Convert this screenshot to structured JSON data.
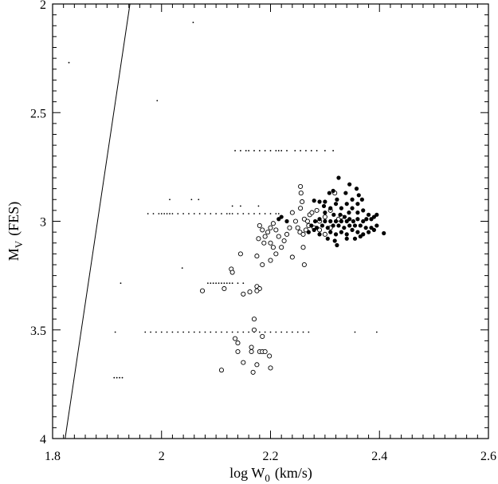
{
  "chart_data": {
    "type": "scatter",
    "xlabel": "log W",
    "xlabel_sub": "0",
    "xlabel_unit": "(km/s)",
    "ylabel": "M",
    "ylabel_sub": "V",
    "ylabel_unit": "(FES)",
    "xlim": [
      1.8,
      2.6
    ],
    "ylim": [
      4,
      2
    ],
    "y_inverted": true,
    "grid": false,
    "x_ticks": [
      1.8,
      2.0,
      2.2,
      2.4,
      2.6
    ],
    "x_tick_labels": [
      "1.8",
      "2",
      "2.2",
      "2.4",
      "2.6"
    ],
    "y_ticks": [
      2.0,
      2.5,
      3.0,
      3.5,
      4.0
    ],
    "y_tick_labels": [
      "2",
      "2.5",
      "3",
      "3.5",
      "4"
    ],
    "line": {
      "x": [
        1.823,
        1.942
      ],
      "y": [
        4.0,
        2.0
      ]
    },
    "dot_rows": [
      {
        "y": 2.675,
        "x": [
          2.135,
          2.145,
          2.155,
          2.16,
          2.17,
          2.18,
          2.19,
          2.2,
          2.21,
          2.215,
          2.22,
          2.23,
          2.245,
          2.255,
          2.265,
          2.275,
          2.285,
          2.3,
          2.315
        ]
      },
      {
        "y": 2.965,
        "x": [
          1.975,
          1.985,
          1.995,
          2.0,
          2.005,
          2.01,
          2.015,
          2.02,
          2.03,
          2.04,
          2.05,
          2.06,
          2.07,
          2.08,
          2.09,
          2.1,
          2.11,
          2.12,
          2.125,
          2.13,
          2.14,
          2.15,
          2.16,
          2.17,
          2.18,
          2.19,
          2.2,
          2.21,
          2.215
        ]
      },
      {
        "y": 3.285,
        "x": [
          2.085,
          2.09,
          2.095,
          2.1,
          2.105,
          2.11,
          2.115,
          2.12,
          2.125,
          2.13,
          2.14,
          2.15
        ]
      },
      {
        "y": 3.51,
        "x": [
          1.915,
          1.97,
          1.98,
          1.99,
          2.0,
          2.01,
          2.02,
          2.03,
          2.04,
          2.05,
          2.06,
          2.07,
          2.08,
          2.09,
          2.1,
          2.11,
          2.12,
          2.13,
          2.14,
          2.15,
          2.16,
          2.17,
          2.18,
          2.19,
          2.2,
          2.21,
          2.22,
          2.23,
          2.24,
          2.25,
          2.26,
          2.27,
          2.355,
          2.395
        ]
      },
      {
        "y": 3.72,
        "x": [
          1.913,
          1.918,
          1.923,
          1.928
        ]
      }
    ],
    "scattered_dots": [
      {
        "x": 1.83,
        "y": 2.27
      },
      {
        "x": 2.058,
        "y": 2.085
      },
      {
        "x": 1.992,
        "y": 2.445
      },
      {
        "x": 2.015,
        "y": 2.9
      },
      {
        "x": 2.055,
        "y": 2.9
      },
      {
        "x": 2.068,
        "y": 2.9
      },
      {
        "x": 2.13,
        "y": 2.93
      },
      {
        "x": 2.145,
        "y": 2.93
      },
      {
        "x": 2.178,
        "y": 2.93
      },
      {
        "x": 2.038,
        "y": 3.215
      },
      {
        "x": 1.925,
        "y": 3.285
      }
    ],
    "series": [
      {
        "marker": "open-circle",
        "points": [
          [
            2.255,
            2.84
          ],
          [
            2.256,
            2.87
          ],
          [
            2.258,
            2.91
          ],
          [
            2.255,
            2.94
          ],
          [
            2.262,
            2.99
          ],
          [
            2.268,
            3.0
          ],
          [
            2.272,
            2.97
          ],
          [
            2.276,
            2.96
          ],
          [
            2.285,
            2.95
          ],
          [
            2.29,
            3.0
          ],
          [
            2.3,
            2.98
          ],
          [
            2.31,
            2.95
          ],
          [
            2.318,
            2.87
          ],
          [
            2.325,
            2.99
          ],
          [
            2.33,
            2.98
          ],
          [
            2.24,
            2.96
          ],
          [
            2.246,
            3.0
          ],
          [
            2.25,
            3.03
          ],
          [
            2.254,
            3.05
          ],
          [
            2.26,
            3.06
          ],
          [
            2.265,
            3.04
          ],
          [
            2.27,
            3.02
          ],
          [
            2.28,
            3.03
          ],
          [
            2.29,
            3.04
          ],
          [
            2.3,
            3.06
          ],
          [
            2.31,
            3.03
          ],
          [
            2.235,
            3.03
          ],
          [
            2.23,
            3.06
          ],
          [
            2.225,
            3.09
          ],
          [
            2.22,
            3.12
          ],
          [
            2.215,
            3.07
          ],
          [
            2.21,
            3.04
          ],
          [
            2.205,
            3.01
          ],
          [
            2.2,
            3.03
          ],
          [
            2.195,
            3.05
          ],
          [
            2.19,
            3.07
          ],
          [
            2.2,
            3.1
          ],
          [
            2.205,
            3.12
          ],
          [
            2.188,
            3.1
          ],
          [
            2.185,
            3.04
          ],
          [
            2.18,
            3.02
          ],
          [
            2.178,
            3.08
          ],
          [
            2.2,
            3.18
          ],
          [
            2.21,
            3.15
          ],
          [
            2.185,
            3.2
          ],
          [
            2.175,
            3.16
          ],
          [
            2.26,
            3.12
          ],
          [
            2.262,
            3.2
          ],
          [
            2.24,
            3.165
          ],
          [
            2.145,
            3.15
          ],
          [
            2.128,
            3.22
          ],
          [
            2.13,
            3.235
          ],
          [
            2.075,
            3.32
          ],
          [
            2.115,
            3.31
          ],
          [
            2.15,
            3.335
          ],
          [
            2.162,
            3.325
          ],
          [
            2.175,
            3.3
          ],
          [
            2.18,
            3.31
          ],
          [
            2.175,
            3.32
          ],
          [
            2.17,
            3.45
          ],
          [
            2.17,
            3.5
          ],
          [
            2.135,
            3.54
          ],
          [
            2.14,
            3.56
          ],
          [
            2.185,
            3.53
          ],
          [
            2.165,
            3.58
          ],
          [
            2.18,
            3.6
          ],
          [
            2.185,
            3.6
          ],
          [
            2.19,
            3.6
          ],
          [
            2.14,
            3.6
          ],
          [
            2.165,
            3.6
          ],
          [
            2.198,
            3.62
          ],
          [
            2.15,
            3.65
          ],
          [
            2.175,
            3.66
          ],
          [
            2.2,
            3.675
          ],
          [
            2.168,
            3.695
          ],
          [
            2.11,
            3.685
          ]
        ]
      },
      {
        "marker": "filled-circle",
        "points": [
          [
            2.325,
            2.8
          ],
          [
            2.345,
            2.83
          ],
          [
            2.358,
            2.85
          ],
          [
            2.362,
            2.88
          ],
          [
            2.338,
            2.87
          ],
          [
            2.315,
            2.86
          ],
          [
            2.322,
            2.9
          ],
          [
            2.308,
            2.87
          ],
          [
            2.28,
            2.905
          ],
          [
            2.29,
            2.91
          ],
          [
            2.298,
            2.93
          ],
          [
            2.31,
            2.94
          ],
          [
            2.32,
            2.92
          ],
          [
            2.33,
            2.94
          ],
          [
            2.34,
            2.92
          ],
          [
            2.35,
            2.9
          ],
          [
            2.36,
            2.92
          ],
          [
            2.368,
            2.9
          ],
          [
            2.35,
            2.94
          ],
          [
            2.344,
            2.96
          ],
          [
            2.36,
            2.96
          ],
          [
            2.37,
            2.95
          ],
          [
            2.38,
            2.97
          ],
          [
            2.39,
            2.98
          ],
          [
            2.395,
            2.97
          ],
          [
            2.385,
            2.99
          ],
          [
            2.37,
            3.0
          ],
          [
            2.36,
            2.99
          ],
          [
            2.352,
            3.0
          ],
          [
            2.34,
            3.0
          ],
          [
            2.33,
            3.0
          ],
          [
            2.32,
            3.0
          ],
          [
            2.31,
            3.0
          ],
          [
            2.3,
            3.0
          ],
          [
            2.29,
            2.99
          ],
          [
            2.282,
            3.0
          ],
          [
            2.275,
            3.02
          ],
          [
            2.285,
            3.03
          ],
          [
            2.295,
            3.02
          ],
          [
            2.305,
            3.03
          ],
          [
            2.315,
            3.02
          ],
          [
            2.325,
            3.02
          ],
          [
            2.335,
            3.03
          ],
          [
            2.345,
            3.02
          ],
          [
            2.355,
            3.02
          ],
          [
            2.365,
            3.02
          ],
          [
            2.375,
            3.03
          ],
          [
            2.385,
            3.03
          ],
          [
            2.395,
            3.02
          ],
          [
            2.31,
            3.05
          ],
          [
            2.32,
            3.06
          ],
          [
            2.33,
            3.05
          ],
          [
            2.34,
            3.06
          ],
          [
            2.35,
            3.04
          ],
          [
            2.36,
            3.05
          ],
          [
            2.37,
            3.06
          ],
          [
            2.38,
            3.05
          ],
          [
            2.39,
            3.04
          ],
          [
            2.305,
            3.08
          ],
          [
            2.318,
            3.09
          ],
          [
            2.322,
            3.11
          ],
          [
            2.34,
            3.08
          ],
          [
            2.355,
            3.08
          ],
          [
            2.365,
            3.07
          ],
          [
            2.408,
            3.055
          ],
          [
            2.22,
            2.98
          ],
          [
            2.23,
            3.0
          ],
          [
            2.215,
            2.99
          ],
          [
            2.3,
            2.96
          ],
          [
            2.328,
            2.97
          ],
          [
            2.316,
            2.97
          ],
          [
            2.336,
            2.98
          ],
          [
            2.28,
            3.04
          ],
          [
            2.27,
            3.05
          ],
          [
            2.29,
            3.06
          ],
          [
            2.3,
            2.91
          ],
          [
            2.345,
            2.99
          ],
          [
            2.376,
            2.99
          ]
        ]
      }
    ]
  }
}
